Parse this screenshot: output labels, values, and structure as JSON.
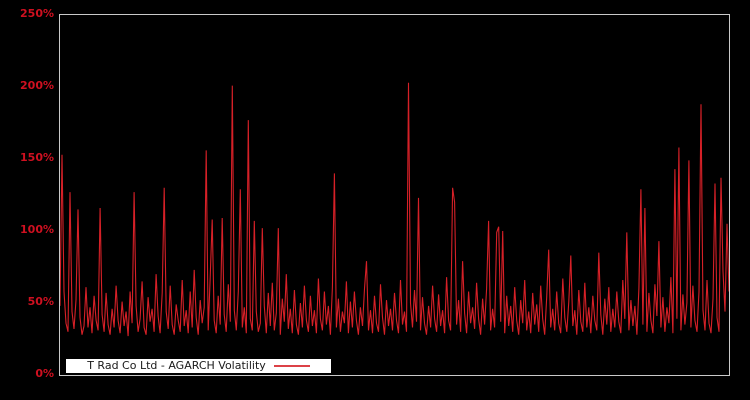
{
  "chart_data": {
    "type": "line",
    "title": "",
    "xlabel": "",
    "ylabel": "",
    "ylim": [
      0,
      250
    ],
    "y_unit": "%",
    "grid": false,
    "x_axis_labels_visible": false,
    "yticks": [
      "250%",
      "200%",
      "150%",
      "100%",
      "50%",
      "0%"
    ],
    "legend": {
      "position": "bottom-left-inside",
      "label": "T Rad Co Ltd - AGARCH Volatility"
    },
    "colors": {
      "background": "#000000",
      "line": "#d62027",
      "tick_label": "#cf1020",
      "plot_border": "#c9c9c9",
      "legend_bg": "#ffffff",
      "legend_border": "#000000",
      "legend_text": "#1a1a1a"
    },
    "series": [
      {
        "name": "T Rad Co Ltd - AGARCH Volatility",
        "unit": "percent",
        "values": [
          48,
          153,
          58,
          36,
          30,
          127,
          44,
          32,
          52,
          115,
          40,
          28,
          34,
          61,
          33,
          47,
          29,
          55,
          38,
          31,
          116,
          42,
          30,
          57,
          35,
          28,
          46,
          33,
          62,
          38,
          29,
          51,
          34,
          44,
          27,
          58,
          36,
          127,
          48,
          30,
          39,
          65,
          33,
          28,
          54,
          37,
          46,
          30,
          70,
          41,
          29,
          57,
          130,
          44,
          32,
          62,
          35,
          28,
          49,
          38,
          30,
          66,
          34,
          45,
          29,
          58,
          33,
          73,
          40,
          28,
          52,
          36,
          47,
          156,
          31,
          68,
          108,
          38,
          29,
          55,
          35,
          109,
          42,
          30,
          63,
          37,
          201,
          45,
          31,
          58,
          129,
          33,
          47,
          29,
          177,
          39,
          31,
          107,
          44,
          30,
          36,
          102,
          48,
          29,
          57,
          34,
          64,
          31,
          43,
          102,
          28,
          53,
          37,
          70,
          32,
          46,
          29,
          59,
          35,
          28,
          50,
          33,
          62,
          38,
          30,
          55,
          34,
          45,
          29,
          67,
          39,
          31,
          58,
          35,
          48,
          28,
          61,
          140,
          33,
          53,
          30,
          44,
          36,
          65,
          29,
          51,
          33,
          58,
          38,
          28,
          47,
          34,
          60,
          79,
          31,
          45,
          29,
          55,
          36,
          30,
          63,
          40,
          28,
          52,
          34,
          46,
          31,
          57,
          38,
          29,
          66,
          35,
          44,
          30,
          203,
          50,
          33,
          59,
          37,
          123,
          31,
          54,
          36,
          28,
          48,
          33,
          62,
          39,
          30,
          56,
          34,
          45,
          29,
          68,
          38,
          31,
          130,
          120,
          35,
          52,
          30,
          79,
          43,
          29,
          58,
          36,
          47,
          32,
          64,
          39,
          28,
          53,
          35,
          60,
          107,
          31,
          46,
          33,
          99,
          103,
          37,
          100,
          29,
          55,
          34,
          48,
          30,
          61,
          38,
          28,
          52,
          36,
          66,
          31,
          44,
          29,
          57,
          35,
          49,
          30,
          62,
          39,
          28,
          54,
          87,
          33,
          46,
          31,
          58,
          36,
          29,
          67,
          40,
          30,
          51,
          83,
          34,
          45,
          28,
          59,
          37,
          30,
          64,
          33,
          47,
          29,
          55,
          38,
          31,
          85,
          42,
          28,
          53,
          35,
          61,
          30,
          46,
          33,
          58,
          37,
          29,
          66,
          39,
          99,
          31,
          52,
          34,
          48,
          28,
          60,
          129,
          35,
          116,
          30,
          57,
          38,
          29,
          63,
          41,
          93,
          33,
          54,
          30,
          47,
          36,
          68,
          29,
          143,
          39,
          158,
          31,
          56,
          35,
          50,
          149,
          33,
          62,
          38,
          30,
          58,
          188,
          45,
          31,
          66,
          36,
          29,
          53,
          133,
          40,
          30,
          137,
          72,
          44,
          105,
          58
        ]
      }
    ]
  }
}
